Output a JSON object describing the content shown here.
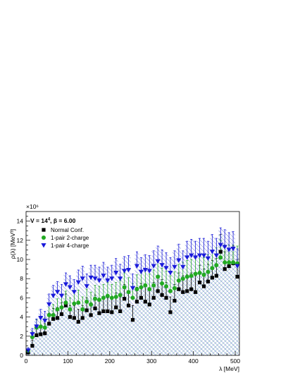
{
  "chart_data": {
    "type": "scatter",
    "xlabel": "λ [MeV]",
    "ylabel": "ρ(λ) [MeV³]",
    "y_multiplier": "×10⁶",
    "xlim": [
      0,
      510
    ],
    "ylim": [
      0,
      15
    ],
    "x_ticks": [
      0,
      100,
      200,
      300,
      400,
      500
    ],
    "y_ticks": [
      0,
      2,
      4,
      6,
      8,
      10,
      12,
      14
    ],
    "legend": {
      "header_main": "V = 14",
      "header_exp": "4",
      "header_beta": ", β = 6.00",
      "placement": "top-left"
    },
    "grid": false,
    "series": [
      {
        "name": "Normal Conf.",
        "marker": "square",
        "color": "#000000",
        "x": [
          5,
          15,
          25,
          35,
          45,
          55,
          65,
          75,
          85,
          95,
          105,
          115,
          125,
          135,
          145,
          155,
          165,
          175,
          185,
          195,
          205,
          215,
          225,
          235,
          245,
          255,
          265,
          275,
          285,
          295,
          305,
          315,
          325,
          335,
          345,
          355,
          365,
          375,
          385,
          395,
          405,
          415,
          425,
          435,
          445,
          455,
          465,
          475,
          485,
          495,
          505
        ],
        "y": [
          0.3,
          1.0,
          2.1,
          2.2,
          2.3,
          3.3,
          3.8,
          3.9,
          4.3,
          5.2,
          4.0,
          3.9,
          3.5,
          3.9,
          4.7,
          4.2,
          4.9,
          4.4,
          4.6,
          4.6,
          4.5,
          5.0,
          4.6,
          5.9,
          5.2,
          3.7,
          5.6,
          6.0,
          5.6,
          5.3,
          6.0,
          6.7,
          6.3,
          6.0,
          4.5,
          5.7,
          6.9,
          6.6,
          6.7,
          6.9,
          6.6,
          7.6,
          7.2,
          7.7,
          8.1,
          8.3,
          10.8,
          9.0,
          9.3,
          9.6,
          8.2
        ],
        "err": [
          0.3,
          0.6,
          0.8,
          0.9,
          1.0,
          1.1,
          1.1,
          1.1,
          1.2,
          1.2,
          1.2,
          1.3,
          1.3,
          1.3,
          1.3,
          1.3,
          1.4,
          1.4,
          1.4,
          1.4,
          1.4,
          1.5,
          1.5,
          1.5,
          1.5,
          1.5,
          1.5,
          1.5,
          1.6,
          1.6,
          1.6,
          1.6,
          1.6,
          1.6,
          1.6,
          1.7,
          1.7,
          1.7,
          1.7,
          1.7,
          1.7,
          1.8,
          1.8,
          1.8,
          1.8,
          1.8,
          1.8,
          1.8,
          1.8,
          1.8,
          1.8
        ]
      },
      {
        "name": "1-pair 2-charge",
        "marker": "circle",
        "color": "#22aa22",
        "x": [
          5,
          15,
          25,
          35,
          45,
          55,
          65,
          75,
          85,
          95,
          105,
          115,
          125,
          135,
          145,
          155,
          165,
          175,
          185,
          195,
          205,
          215,
          225,
          235,
          245,
          255,
          265,
          275,
          285,
          295,
          305,
          315,
          325,
          335,
          345,
          355,
          365,
          375,
          385,
          395,
          405,
          415,
          425,
          435,
          445,
          455,
          465,
          475,
          485,
          495,
          505
        ],
        "y": [
          0.5,
          1.9,
          2.9,
          3.0,
          2.9,
          4.2,
          4.2,
          4.8,
          5.0,
          5.5,
          4.8,
          5.4,
          5.5,
          4.8,
          5.6,
          5.3,
          5.9,
          5.8,
          6.0,
          6.2,
          6.0,
          6.1,
          6.3,
          7.1,
          6.6,
          6.0,
          6.9,
          7.1,
          7.3,
          6.9,
          7.3,
          8.2,
          7.5,
          7.2,
          6.7,
          7.0,
          7.8,
          8.0,
          8.2,
          8.3,
          8.5,
          8.6,
          8.4,
          8.7,
          9.1,
          9.4,
          10.2,
          9.7,
          9.7,
          9.7,
          9.6
        ],
        "err": [
          0.3,
          0.6,
          0.8,
          0.9,
          1.0,
          1.1,
          1.1,
          1.1,
          1.2,
          1.2,
          1.2,
          1.3,
          1.3,
          1.3,
          1.3,
          1.3,
          1.4,
          1.4,
          1.4,
          1.4,
          1.4,
          1.5,
          1.5,
          1.5,
          1.5,
          1.5,
          1.5,
          1.5,
          1.6,
          1.6,
          1.6,
          1.6,
          1.6,
          1.6,
          1.6,
          1.7,
          1.7,
          1.7,
          1.7,
          1.7,
          1.7,
          1.8,
          1.8,
          1.8,
          1.8,
          1.8,
          1.8,
          1.8,
          1.8,
          1.8,
          1.8
        ]
      },
      {
        "name": "1-pair 4-charge",
        "marker": "triangle-down",
        "color": "#1a1adb",
        "x": [
          5,
          15,
          25,
          35,
          45,
          55,
          65,
          75,
          85,
          95,
          105,
          115,
          125,
          135,
          145,
          155,
          165,
          175,
          185,
          195,
          205,
          215,
          225,
          235,
          245,
          255,
          265,
          275,
          285,
          295,
          305,
          315,
          325,
          335,
          345,
          355,
          365,
          375,
          385,
          395,
          405,
          415,
          425,
          435,
          445,
          455,
          465,
          475,
          485,
          495,
          505
        ],
        "y": [
          0.5,
          2.2,
          3.0,
          3.9,
          3.6,
          5.3,
          6.2,
          6.6,
          6.2,
          7.4,
          7.1,
          6.6,
          7.6,
          8.0,
          7.2,
          8.1,
          8.0,
          7.8,
          8.3,
          7.8,
          8.0,
          8.6,
          8.0,
          8.8,
          8.9,
          7.0,
          9.3,
          8.7,
          8.9,
          8.8,
          9.3,
          9.8,
          9.4,
          9.1,
          8.6,
          9.2,
          9.9,
          9.2,
          10.2,
          10.4,
          10.2,
          10.4,
          10.4,
          10.1,
          10.8,
          10.4,
          11.5,
          11.3,
          11.0,
          11.1,
          9.3
        ],
        "err": [
          0.3,
          0.6,
          0.8,
          0.9,
          1.0,
          1.1,
          1.1,
          1.1,
          1.2,
          1.2,
          1.2,
          1.3,
          1.3,
          1.3,
          1.3,
          1.3,
          1.4,
          1.4,
          1.4,
          1.4,
          1.4,
          1.5,
          1.5,
          1.5,
          1.5,
          1.5,
          1.5,
          1.5,
          1.6,
          1.6,
          1.6,
          1.6,
          1.6,
          1.6,
          1.6,
          1.7,
          1.7,
          1.7,
          1.7,
          1.7,
          1.7,
          1.8,
          1.8,
          1.8,
          1.8,
          1.8,
          1.8,
          1.8,
          1.8,
          1.8,
          1.8
        ]
      }
    ]
  }
}
